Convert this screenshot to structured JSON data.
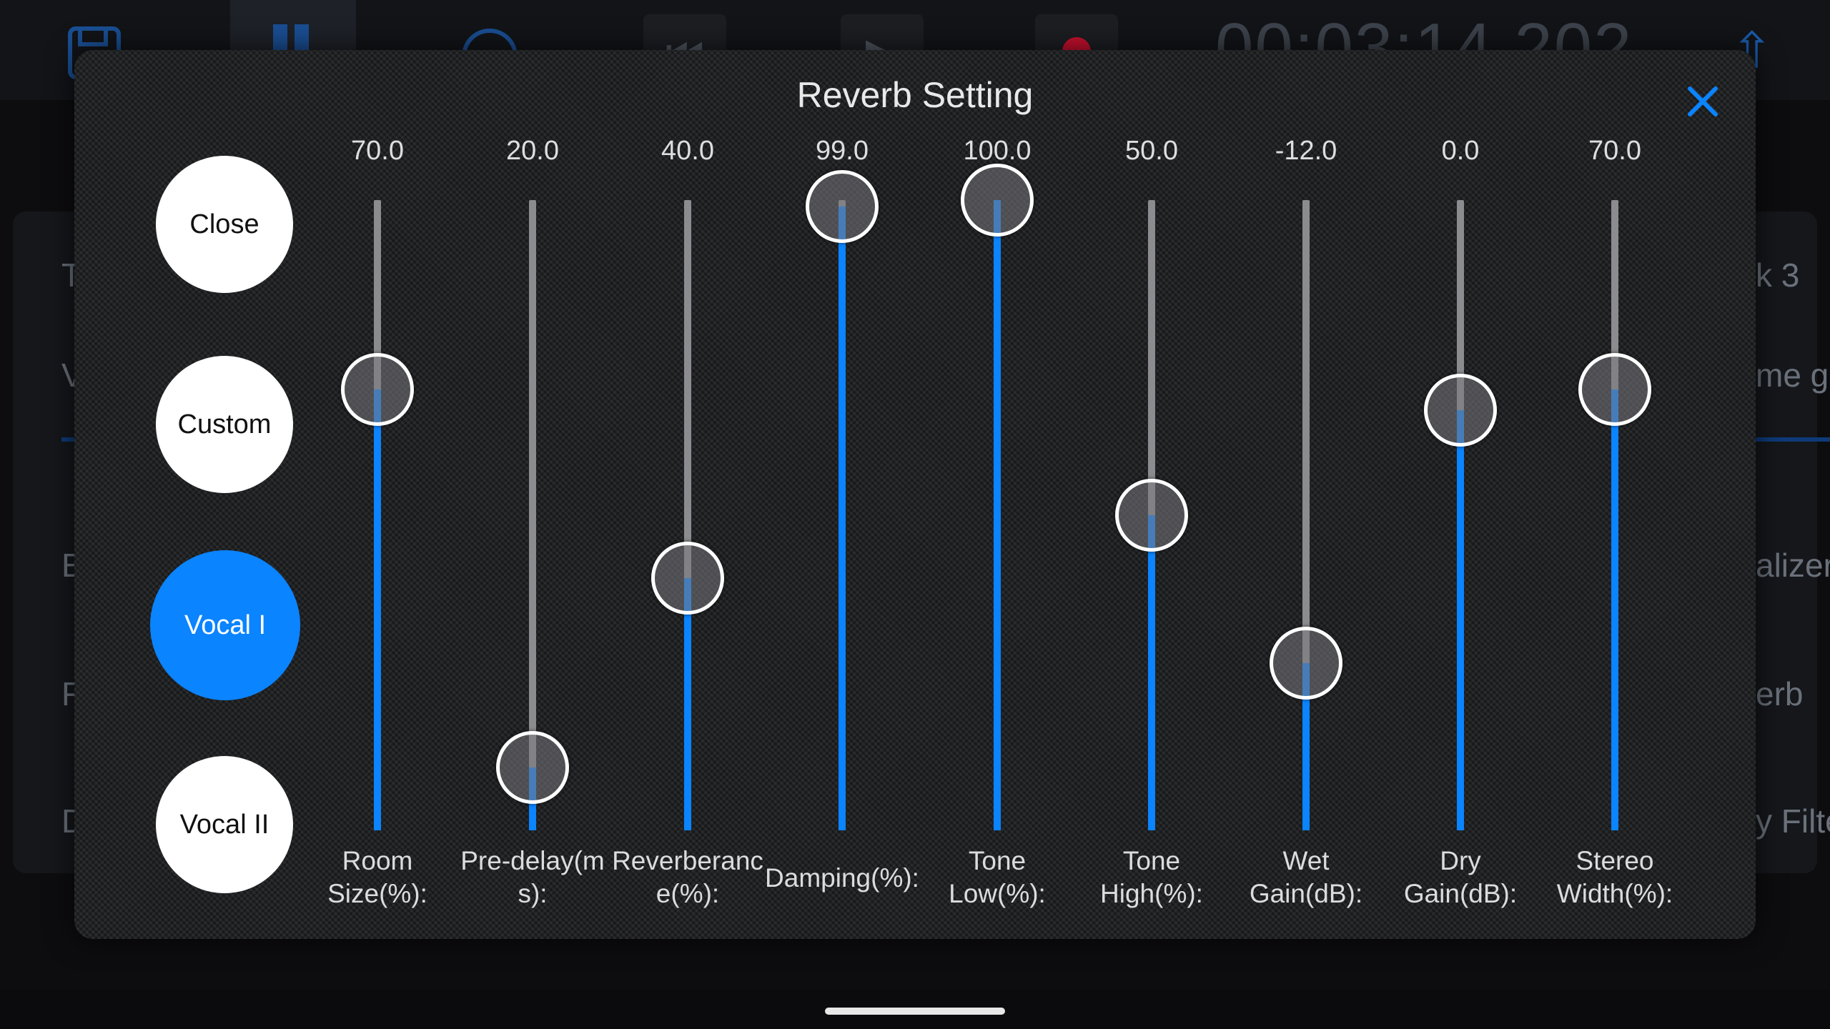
{
  "background": {
    "toolbar": {
      "time": "00:03:14.202",
      "icons": [
        "save-icon",
        "library-icon",
        "loop-icon",
        "skip-back-icon",
        "play-icon",
        "record-icon",
        "export-icon"
      ]
    },
    "panel_texts": {
      "left": [
        "T",
        "V",
        "E",
        "F",
        "D"
      ],
      "right": [
        "k 3",
        "me g",
        "alizer",
        "erb",
        "y Filte"
      ]
    }
  },
  "modal": {
    "title": "Reverb Setting",
    "close_icon": "close-icon",
    "accent_color": "#0a84ff"
  },
  "presets": [
    {
      "label": "Close",
      "active": false
    },
    {
      "label": "Custom",
      "active": false
    },
    {
      "label": "Vocal I",
      "active": true
    },
    {
      "label": "Vocal II",
      "active": false
    }
  ],
  "sliders": [
    {
      "id": "room-size",
      "value": "70.0",
      "label": "Room\nSize(%):",
      "level": 0.7
    },
    {
      "id": "pre-delay",
      "value": "20.0",
      "label": "Pre-delay(m\ns):",
      "level": 0.1
    },
    {
      "id": "reverberance",
      "value": "40.0",
      "label": "Reverberanc\ne(%):",
      "level": 0.4
    },
    {
      "id": "damping",
      "value": "99.0",
      "label": "Damping(%):",
      "level": 0.99
    },
    {
      "id": "tone-low",
      "value": "100.0",
      "label": "Tone\nLow(%):",
      "level": 1.0
    },
    {
      "id": "tone-high",
      "value": "50.0",
      "label": "Tone\nHigh(%):",
      "level": 0.5
    },
    {
      "id": "wet-gain",
      "value": "-12.0",
      "label": "Wet\nGain(dB):",
      "level": 0.265
    },
    {
      "id": "dry-gain",
      "value": "0.0",
      "label": "Dry\nGain(dB):",
      "level": 0.667
    },
    {
      "id": "stereo-width",
      "value": "70.0",
      "label": "Stereo\nWidth(%):",
      "level": 0.7
    }
  ]
}
